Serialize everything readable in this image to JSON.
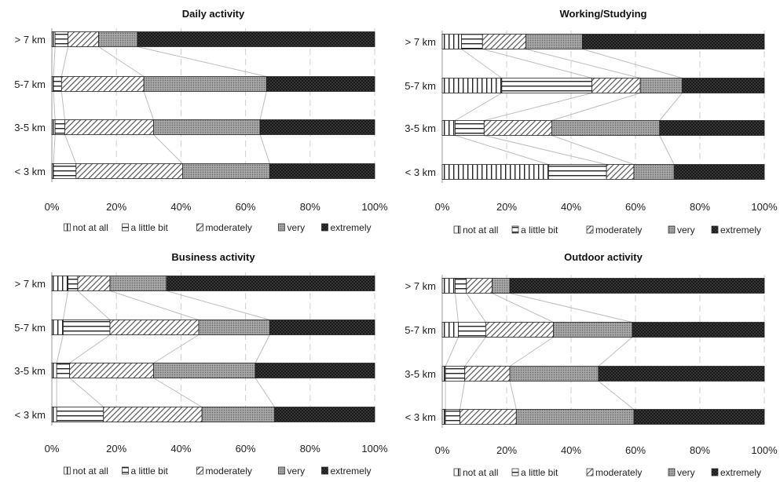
{
  "legend_labels": [
    "not at all",
    "a little bit",
    "moderately",
    "very",
    "extremely"
  ],
  "chart_data": [
    {
      "type": "bar",
      "stacked": true,
      "orientation": "horizontal",
      "title": "Daily activity",
      "categories": [
        "> 7 km",
        "5-7 km",
        "3-5 km",
        "< 3 km"
      ],
      "x_ticks": [
        "0%",
        "20%",
        "40%",
        "60%",
        "80%",
        "100%"
      ],
      "xlim": [
        0,
        100
      ],
      "grid": "vertical dashed",
      "legend": "bottom",
      "series": [
        {
          "name": "not at all",
          "values": [
            1,
            0.5,
            1,
            0.5
          ]
        },
        {
          "name": "a little bit",
          "values": [
            4,
            2.5,
            3,
            7
          ]
        },
        {
          "name": "moderately",
          "values": [
            9.5,
            25.5,
            27.5,
            33
          ]
        },
        {
          "name": "very",
          "values": [
            12,
            38,
            33,
            27
          ]
        },
        {
          "name": "extremely",
          "values": [
            73.5,
            33.5,
            35.5,
            32.5
          ]
        }
      ]
    },
    {
      "type": "bar",
      "stacked": true,
      "orientation": "horizontal",
      "title": "Working/Studying",
      "categories": [
        "> 7 km",
        "5-7 km",
        "3-5 km",
        "< 3 km"
      ],
      "x_ticks": [
        "0%",
        "20%",
        "40%",
        "60%",
        "80%",
        "100%"
      ],
      "xlim": [
        0,
        100
      ],
      "grid": "vertical dashed",
      "legend": "bottom",
      "series": [
        {
          "name": "not at all",
          "values": [
            6,
            18.5,
            4,
            33
          ]
        },
        {
          "name": "a little bit",
          "values": [
            6.5,
            28,
            9,
            18
          ]
        },
        {
          "name": "moderately",
          "values": [
            13.5,
            15,
            21,
            8.5
          ]
        },
        {
          "name": "very",
          "values": [
            17.5,
            13,
            33.5,
            12.5
          ]
        },
        {
          "name": "extremely",
          "values": [
            56.5,
            25.5,
            32.5,
            28
          ]
        }
      ]
    },
    {
      "type": "bar",
      "stacked": true,
      "orientation": "horizontal",
      "title": "Business activity",
      "categories": [
        "> 7 km",
        "5-7 km",
        "3-5 km",
        "< 3 km"
      ],
      "x_ticks": [
        "0%",
        "20%",
        "40%",
        "60%",
        "80%",
        "100%"
      ],
      "xlim": [
        0,
        100
      ],
      "grid": "vertical dashed",
      "legend": "bottom",
      "series": [
        {
          "name": "not at all",
          "values": [
            5,
            3.5,
            1.5,
            1.5
          ]
        },
        {
          "name": "a little bit",
          "values": [
            3,
            14.5,
            4,
            14.5
          ]
        },
        {
          "name": "moderately",
          "values": [
            10,
            27.5,
            26,
            30.5
          ]
        },
        {
          "name": "very",
          "values": [
            17.5,
            22,
            31.5,
            22.5
          ]
        },
        {
          "name": "extremely",
          "values": [
            64.5,
            32.5,
            37,
            31
          ]
        }
      ]
    },
    {
      "type": "bar",
      "stacked": true,
      "orientation": "horizontal",
      "title": "Outdoor activity",
      "categories": [
        "> 7 km",
        "5-7 km",
        "3-5 km",
        "< 3 km"
      ],
      "x_ticks": [
        "0%",
        "20%",
        "40%",
        "60%",
        "80%",
        "100%"
      ],
      "xlim": [
        0,
        100
      ],
      "grid": "vertical dashed",
      "legend": "bottom",
      "series": [
        {
          "name": "not at all",
          "values": [
            4,
            5,
            1,
            1
          ]
        },
        {
          "name": "a little bit",
          "values": [
            3.5,
            8.5,
            6,
            4.5
          ]
        },
        {
          "name": "moderately",
          "values": [
            8,
            21,
            14,
            17.5
          ]
        },
        {
          "name": "very",
          "values": [
            5.5,
            24.5,
            27.5,
            36.5
          ]
        },
        {
          "name": "extremely",
          "values": [
            79,
            41,
            51.5,
            40.5
          ]
        }
      ]
    }
  ]
}
